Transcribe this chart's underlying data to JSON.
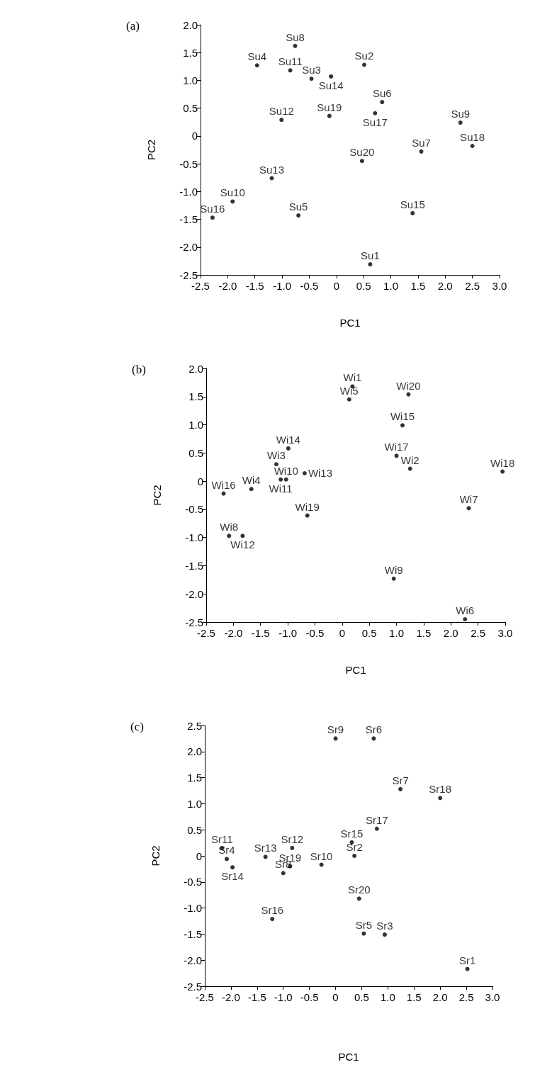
{
  "chart_data": [
    {
      "type": "scatter",
      "title": "(a)",
      "xlabel": "PC1",
      "ylabel": "PC2",
      "marker": "circle",
      "x": [
        0.62,
        0.51,
        -0.46,
        -1.46,
        -0.7,
        0.84,
        1.56,
        -0.76,
        2.28,
        -1.91,
        -0.85,
        -1.01,
        -1.19,
        -0.1,
        1.4,
        -2.28,
        0.71,
        2.5,
        -0.13,
        0.47
      ],
      "values": [
        -2.31,
        1.28,
        1.03,
        1.27,
        -1.43,
        0.61,
        -0.28,
        1.62,
        0.24,
        -1.18,
        1.18,
        0.29,
        -0.76,
        1.07,
        -1.39,
        -1.47,
        0.41,
        -0.18,
        0.36,
        -0.45
      ],
      "value_labels": [
        "Su1",
        "Su2",
        "Su3",
        "Su4",
        "Su5",
        "Su6",
        "Su7",
        "Su8",
        "Su9",
        "Su10",
        "Su11",
        "Su12",
        "Su13",
        "Su14",
        "Su15",
        "Su16",
        "Su17",
        "Su18",
        "Su19",
        "Su20"
      ],
      "xlim": [
        -2.5,
        3.0
      ],
      "ylim": [
        -2.5,
        2.0
      ],
      "xticks": [
        -2.5,
        {
          "value": -2,
          "label": "-2.0"
        },
        -1.5,
        {
          "value": -1,
          "label": "-1.0"
        },
        -0.5,
        0,
        0.5,
        {
          "value": 1,
          "label": "1.0"
        },
        1.5,
        {
          "value": 2,
          "label": "2.0"
        },
        2.5,
        {
          "value": 3,
          "label": "3.0"
        }
      ],
      "yticks": [
        -2.5,
        {
          "value": -2,
          "label": "-2.0"
        },
        -1.5,
        {
          "value": -1,
          "label": "-1.0"
        },
        -0.5,
        0,
        0.5,
        {
          "value": 1,
          "label": "1.0"
        },
        1.5,
        {
          "value": 2,
          "label": "2.0"
        }
      ]
    },
    {
      "type": "scatter",
      "title": "(b)",
      "xlabel": "PC1",
      "ylabel": "PC2",
      "marker": "circle",
      "x": [
        0.19,
        1.25,
        -1.21,
        -1.67,
        0.13,
        2.26,
        2.33,
        -2.08,
        0.95,
        -1.03,
        -1.13,
        -1.83,
        -0.69,
        -0.99,
        1.11,
        -2.18,
        1.0,
        2.95,
        -0.64,
        1.22
      ],
      "values": [
        1.68,
        0.22,
        0.3,
        -0.14,
        1.45,
        -2.45,
        -0.48,
        -0.97,
        -1.73,
        0.03,
        0.03,
        -0.97,
        0.14,
        0.58,
        0.99,
        -0.22,
        0.45,
        0.17,
        -0.61,
        1.54
      ],
      "value_labels": [
        "Wi1",
        "Wi2",
        "Wi3",
        "Wi4",
        "Wi5",
        "Wi6",
        "Wi7",
        "Wi8",
        "Wi9",
        "Wi10",
        "Wi11",
        "Wi12",
        "Wi13",
        "Wi14",
        "Wi15",
        "Wi16",
        "Wi17",
        "Wi18",
        "Wi19",
        "Wi20"
      ],
      "xlim": [
        -2.5,
        3.0
      ],
      "ylim": [
        -2.5,
        2.0
      ],
      "xticks": [
        -2.5,
        {
          "value": -2,
          "label": "-2.0"
        },
        -1.5,
        {
          "value": -1,
          "label": "-1.0"
        },
        -0.5,
        0,
        0.5,
        {
          "value": 1,
          "label": "1.0"
        },
        1.5,
        {
          "value": 2,
          "label": "2.0"
        },
        2.5,
        {
          "value": 3,
          "label": "3.0"
        }
      ],
      "yticks": [
        -2.5,
        {
          "value": -2,
          "label": "-2.0"
        },
        -1.5,
        {
          "value": -1,
          "label": "-1.0"
        },
        -0.5,
        0,
        0.5,
        {
          "value": 1,
          "label": "1.0"
        },
        1.5,
        {
          "value": 2,
          "label": "2.0"
        }
      ]
    },
    {
      "type": "scatter",
      "title": "(c)",
      "xlabel": "PC1",
      "ylabel": "PC2",
      "marker": "circle",
      "x": [
        2.52,
        0.36,
        0.94,
        -2.08,
        0.54,
        0.73,
        1.24,
        -1.0,
        0.0,
        -0.27,
        -2.17,
        -0.83,
        -1.34,
        -1.97,
        0.31,
        -1.21,
        0.79,
        2.0,
        -0.87,
        0.45
      ],
      "values": [
        -2.17,
        0.0,
        -1.51,
        -0.06,
        -1.49,
        2.25,
        1.28,
        -0.33,
        2.25,
        -0.17,
        0.15,
        0.15,
        -0.02,
        -0.22,
        0.26,
        -1.21,
        0.52,
        1.11,
        -0.2,
        -0.82
      ],
      "value_labels": [
        "Sr1",
        "Sr2",
        "Sr3",
        "Sr4",
        "Sr5",
        "Sr6",
        "Sr7",
        "Sr8",
        "Sr9",
        "Sr10",
        "Sr11",
        "Sr12",
        "Sr13",
        "Sr14",
        "Sr15",
        "Sr16",
        "Sr17",
        "Sr18",
        "Sr19",
        "Sr20"
      ],
      "xlim": [
        -2.5,
        3.0
      ],
      "ylim": [
        -2.5,
        2.5
      ],
      "xticks": [
        -2.5,
        {
          "value": -2,
          "label": "-2.0"
        },
        -1.5,
        {
          "value": -1,
          "label": "-1.0"
        },
        -0.5,
        0,
        0.5,
        {
          "value": 1,
          "label": "1.0"
        },
        1.5,
        {
          "value": 2,
          "label": "2.0"
        },
        2.5,
        {
          "value": 3,
          "label": "3.0"
        }
      ],
      "yticks": [
        -2.5,
        {
          "value": -2,
          "label": "-2.0"
        },
        -1.5,
        {
          "value": -1,
          "label": "-1.0"
        },
        -0.5,
        0,
        0.5,
        {
          "value": 1,
          "label": "1.0"
        },
        1.5,
        {
          "value": 2,
          "label": "2.0"
        },
        2.5
      ]
    }
  ]
}
